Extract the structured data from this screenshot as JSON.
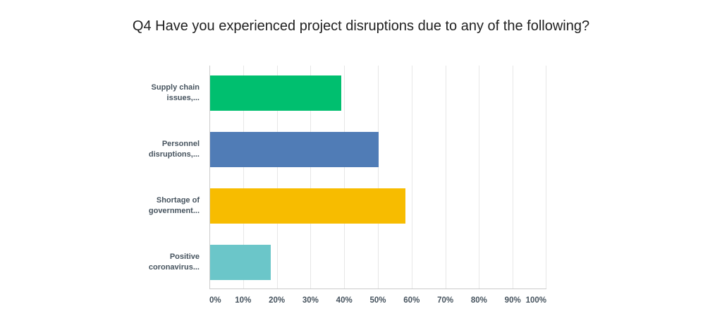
{
  "title": "Q4 Have you experienced project disruptions due to any of the following?",
  "colors": {
    "background": "#ffffff",
    "title_text": "#1f1f1f",
    "label_text": "#46535e",
    "gridline": "#e7e7e7",
    "axis_line": "#cccccc"
  },
  "chart_data": {
    "type": "bar",
    "orientation": "horizontal",
    "title": "Q4 Have you experienced project disruptions due to any of the following?",
    "categories": [
      "Supply chain issues,...",
      "Personnel disruptions,...",
      "Shortage of government...",
      "Positive coronavirus..."
    ],
    "category_lines": [
      [
        "Supply chain",
        "issues,..."
      ],
      [
        "Personnel",
        "disruptions,..."
      ],
      [
        "Shortage of",
        "government..."
      ],
      [
        "Positive",
        "coronavirus..."
      ]
    ],
    "values": [
      39,
      50,
      58,
      18
    ],
    "value_unit": "%",
    "bar_colors": [
      "#00bf6f",
      "#507cb6",
      "#f7bc00",
      "#6bc6c9"
    ],
    "x_ticks": [
      "0%",
      "10%",
      "20%",
      "30%",
      "40%",
      "50%",
      "60%",
      "70%",
      "80%",
      "90%",
      "100%"
    ],
    "xlim": [
      0,
      100
    ],
    "xlabel": "",
    "ylabel": "",
    "grid": "vertical",
    "legend": "none"
  }
}
